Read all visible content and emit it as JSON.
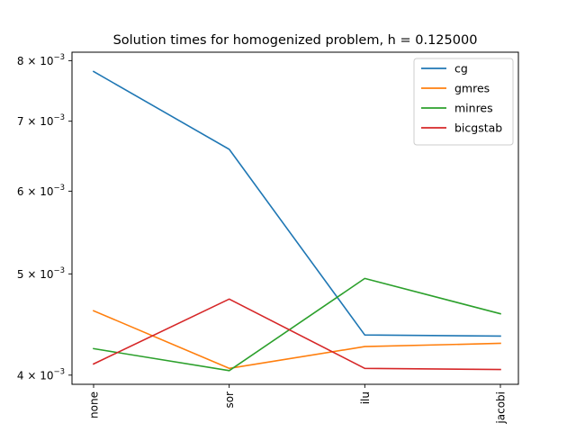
{
  "chart_data": {
    "type": "line",
    "title": "Solution times for homogenized problem, h = 0.125000",
    "xlabel": "",
    "ylabel": "",
    "categories": [
      "none",
      "sor",
      "ilu",
      "jacobi"
    ],
    "yscale": "log",
    "ylim": [
      0.00392,
      0.00815
    ],
    "yticks": [
      {
        "value": 0.004,
        "label": "4 × 10",
        "exp": "−3"
      },
      {
        "value": 0.005,
        "label": "5 × 10",
        "exp": "−3"
      },
      {
        "value": 0.006,
        "label": "6 × 10",
        "exp": "−3"
      },
      {
        "value": 0.007,
        "label": "7 × 10",
        "exp": "−3"
      },
      {
        "value": 0.008,
        "label": "8 × 10",
        "exp": "−3"
      }
    ],
    "grid": false,
    "legend_position": "top-right",
    "series": [
      {
        "name": "cg",
        "color": "#1f77b4",
        "values": [
          0.00781,
          0.00658,
          0.00437,
          0.00436
        ]
      },
      {
        "name": "gmres",
        "color": "#ff7f0e",
        "values": [
          0.00461,
          0.00406,
          0.00426,
          0.00429
        ]
      },
      {
        "name": "minres",
        "color": "#2ca02c",
        "values": [
          0.00424,
          0.00404,
          0.00495,
          0.00458
        ]
      },
      {
        "name": "bicgstab",
        "color": "#d62728",
        "values": [
          0.0041,
          0.00473,
          0.00406,
          0.00405
        ]
      }
    ]
  }
}
